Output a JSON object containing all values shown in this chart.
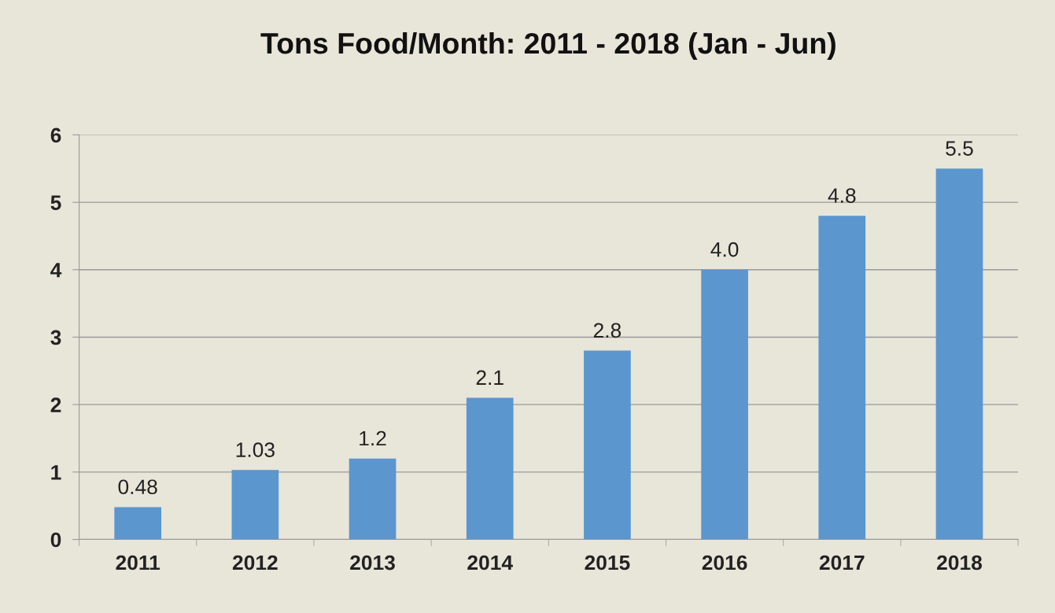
{
  "chart_data": {
    "type": "bar",
    "title": "Tons Food/Month: 2011 - 2018 (Jan - Jun)",
    "categories": [
      "2011",
      "2012",
      "2013",
      "2014",
      "2015",
      "2016",
      "2017",
      "2018"
    ],
    "values": [
      0.48,
      1.03,
      1.2,
      2.1,
      2.8,
      4.0,
      4.8,
      5.5
    ],
    "value_labels": [
      "0.48",
      "1.03",
      "1.2",
      "2.1",
      "2.8",
      "4.0",
      "4.8",
      "5.5"
    ],
    "color": "#5b96cf",
    "ylim": [
      0,
      6
    ],
    "yticks": [
      0,
      1,
      2,
      3,
      4,
      5,
      6
    ],
    "grid": "y",
    "legend": false
  }
}
